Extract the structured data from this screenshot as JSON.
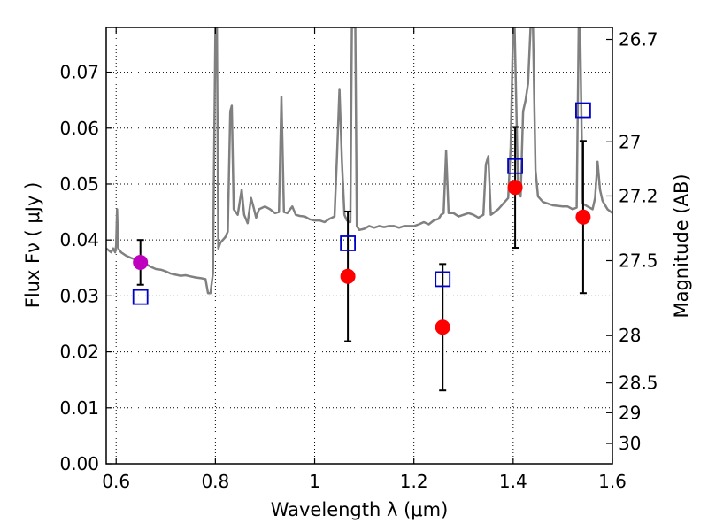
{
  "chart_data": {
    "type": "scatter",
    "xlabel": "Wavelength  λ (μm)",
    "ylabel": "Flux  Fν  ( μJy )",
    "y2label": "Magnitude (AB)",
    "xlim": [
      0.58,
      1.6
    ],
    "ylim": [
      0.0,
      0.078
    ],
    "grid": true,
    "x_ticks": [
      {
        "value": 0.6,
        "label": "0.6"
      },
      {
        "value": 0.8,
        "label": "0.8"
      },
      {
        "value": 1.0,
        "label": "1"
      },
      {
        "value": 1.2,
        "label": "1.2"
      },
      {
        "value": 1.4,
        "label": "1.4"
      },
      {
        "value": 1.6,
        "label": "1.6"
      }
    ],
    "y_ticks": [
      {
        "value": 0.0,
        "label": "0.00"
      },
      {
        "value": 0.01,
        "label": "0.01"
      },
      {
        "value": 0.02,
        "label": "0.02"
      },
      {
        "value": 0.03,
        "label": "0.03"
      },
      {
        "value": 0.04,
        "label": "0.04"
      },
      {
        "value": 0.05,
        "label": "0.05"
      },
      {
        "value": 0.06,
        "label": "0.06"
      },
      {
        "value": 0.07,
        "label": "0.07"
      }
    ],
    "y2_ticks": [
      {
        "value": 26.7,
        "label": "26.7"
      },
      {
        "value": 27.0,
        "label": "27"
      },
      {
        "value": 27.2,
        "label": "27.2"
      },
      {
        "value": 27.5,
        "label": "27.5"
      },
      {
        "value": 28.0,
        "label": "28"
      },
      {
        "value": 28.5,
        "label": "28.5"
      },
      {
        "value": 29.0,
        "label": "29"
      },
      {
        "value": 30.0,
        "label": "30"
      }
    ],
    "model_spectrum": {
      "color": "#808080",
      "points": [
        [
          0.58,
          0.0385
        ],
        [
          0.59,
          0.0378
        ],
        [
          0.594,
          0.0385
        ],
        [
          0.598,
          0.0378
        ],
        [
          0.6,
          0.039
        ],
        [
          0.602,
          0.0455
        ],
        [
          0.604,
          0.0385
        ],
        [
          0.61,
          0.0378
        ],
        [
          0.62,
          0.0372
        ],
        [
          0.63,
          0.0368
        ],
        [
          0.64,
          0.0365
        ],
        [
          0.65,
          0.036
        ],
        [
          0.66,
          0.0357
        ],
        [
          0.67,
          0.0352
        ],
        [
          0.68,
          0.0348
        ],
        [
          0.69,
          0.0347
        ],
        [
          0.7,
          0.0344
        ],
        [
          0.71,
          0.034
        ],
        [
          0.72,
          0.0338
        ],
        [
          0.73,
          0.0336
        ],
        [
          0.74,
          0.0337
        ],
        [
          0.75,
          0.0335
        ],
        [
          0.76,
          0.0333
        ],
        [
          0.77,
          0.0332
        ],
        [
          0.78,
          0.033
        ],
        [
          0.785,
          0.0305
        ],
        [
          0.79,
          0.0305
        ],
        [
          0.795,
          0.034
        ],
        [
          0.8,
          0.078
        ],
        [
          0.803,
          0.078
        ],
        [
          0.806,
          0.0385
        ],
        [
          0.81,
          0.0395
        ],
        [
          0.815,
          0.04
        ],
        [
          0.82,
          0.0405
        ],
        [
          0.825,
          0.0415
        ],
        [
          0.83,
          0.063
        ],
        [
          0.833,
          0.064
        ],
        [
          0.837,
          0.0455
        ],
        [
          0.845,
          0.0445
        ],
        [
          0.853,
          0.049
        ],
        [
          0.858,
          0.0445
        ],
        [
          0.865,
          0.043
        ],
        [
          0.872,
          0.0475
        ],
        [
          0.877,
          0.0458
        ],
        [
          0.882,
          0.044
        ],
        [
          0.888,
          0.0455
        ],
        [
          0.9,
          0.046
        ],
        [
          0.91,
          0.0455
        ],
        [
          0.92,
          0.0448
        ],
        [
          0.928,
          0.045
        ],
        [
          0.933,
          0.0656
        ],
        [
          0.938,
          0.045
        ],
        [
          0.945,
          0.0448
        ],
        [
          0.955,
          0.046
        ],
        [
          0.962,
          0.0445
        ],
        [
          0.97,
          0.0443
        ],
        [
          0.98,
          0.0442
        ],
        [
          0.99,
          0.0437
        ],
        [
          1.0,
          0.0435
        ],
        [
          1.01,
          0.0435
        ],
        [
          1.02,
          0.0432
        ],
        [
          1.03,
          0.0438
        ],
        [
          1.04,
          0.0442
        ],
        [
          1.045,
          0.055
        ],
        [
          1.05,
          0.067
        ],
        [
          1.055,
          0.054
        ],
        [
          1.06,
          0.0445
        ],
        [
          1.065,
          0.0435
        ],
        [
          1.07,
          0.0432
        ],
        [
          1.072,
          0.0432
        ],
        [
          1.075,
          0.078
        ],
        [
          1.082,
          0.078
        ],
        [
          1.085,
          0.0425
        ],
        [
          1.09,
          0.0418
        ],
        [
          1.1,
          0.042
        ],
        [
          1.11,
          0.0425
        ],
        [
          1.12,
          0.0422
        ],
        [
          1.13,
          0.0425
        ],
        [
          1.14,
          0.0423
        ],
        [
          1.15,
          0.0425
        ],
        [
          1.16,
          0.0425
        ],
        [
          1.17,
          0.0422
        ],
        [
          1.18,
          0.0425
        ],
        [
          1.19,
          0.0425
        ],
        [
          1.2,
          0.0425
        ],
        [
          1.21,
          0.0428
        ],
        [
          1.22,
          0.0432
        ],
        [
          1.23,
          0.0428
        ],
        [
          1.24,
          0.0435
        ],
        [
          1.25,
          0.0438
        ],
        [
          1.255,
          0.0445
        ],
        [
          1.26,
          0.0448
        ],
        [
          1.265,
          0.056
        ],
        [
          1.27,
          0.0448
        ],
        [
          1.28,
          0.0448
        ],
        [
          1.29,
          0.0442
        ],
        [
          1.3,
          0.0445
        ],
        [
          1.31,
          0.0448
        ],
        [
          1.32,
          0.0445
        ],
        [
          1.33,
          0.044
        ],
        [
          1.34,
          0.0445
        ],
        [
          1.345,
          0.0535
        ],
        [
          1.35,
          0.055
        ],
        [
          1.355,
          0.0445
        ],
        [
          1.36,
          0.0448
        ],
        [
          1.37,
          0.0455
        ],
        [
          1.38,
          0.0465
        ],
        [
          1.39,
          0.0475
        ],
        [
          1.395,
          0.0565
        ],
        [
          1.4,
          0.078
        ],
        [
          1.403,
          0.078
        ],
        [
          1.41,
          0.0485
        ],
        [
          1.415,
          0.0478
        ],
        [
          1.42,
          0.063
        ],
        [
          1.425,
          0.065
        ],
        [
          1.43,
          0.068
        ],
        [
          1.435,
          0.078
        ],
        [
          1.44,
          0.078
        ],
        [
          1.445,
          0.0525
        ],
        [
          1.45,
          0.0478
        ],
        [
          1.46,
          0.0468
        ],
        [
          1.47,
          0.0465
        ],
        [
          1.48,
          0.0462
        ],
        [
          1.49,
          0.0461
        ],
        [
          1.5,
          0.046
        ],
        [
          1.51,
          0.046
        ],
        [
          1.52,
          0.0455
        ],
        [
          1.528,
          0.0458
        ],
        [
          1.532,
          0.078
        ],
        [
          1.535,
          0.078
        ],
        [
          1.54,
          0.0465
        ],
        [
          1.55,
          0.046
        ],
        [
          1.56,
          0.0455
        ],
        [
          1.565,
          0.0475
        ],
        [
          1.57,
          0.054
        ],
        [
          1.575,
          0.049
        ],
        [
          1.58,
          0.047
        ],
        [
          1.59,
          0.0455
        ],
        [
          1.6,
          0.0448
        ]
      ]
    },
    "series": [
      {
        "marker": "circle",
        "color": "#ff0000",
        "points": [
          {
            "x": 1.067,
            "y": 0.0335,
            "err": 0.0116
          },
          {
            "x": 1.258,
            "y": 0.0244,
            "err": 0.0113
          },
          {
            "x": 1.404,
            "y": 0.0494,
            "err": 0.0108
          },
          {
            "x": 1.541,
            "y": 0.0441,
            "err": 0.0136
          }
        ]
      },
      {
        "marker": "circle",
        "color": "#bf00bf",
        "points": [
          {
            "x": 0.649,
            "y": 0.036,
            "err": 0.004
          }
        ]
      },
      {
        "marker": "square-open",
        "color": "#0000cc",
        "points": [
          {
            "x": 0.649,
            "y": 0.0298
          },
          {
            "x": 1.067,
            "y": 0.0394
          },
          {
            "x": 1.258,
            "y": 0.033
          },
          {
            "x": 1.404,
            "y": 0.0532
          },
          {
            "x": 1.541,
            "y": 0.0632
          }
        ]
      }
    ]
  }
}
